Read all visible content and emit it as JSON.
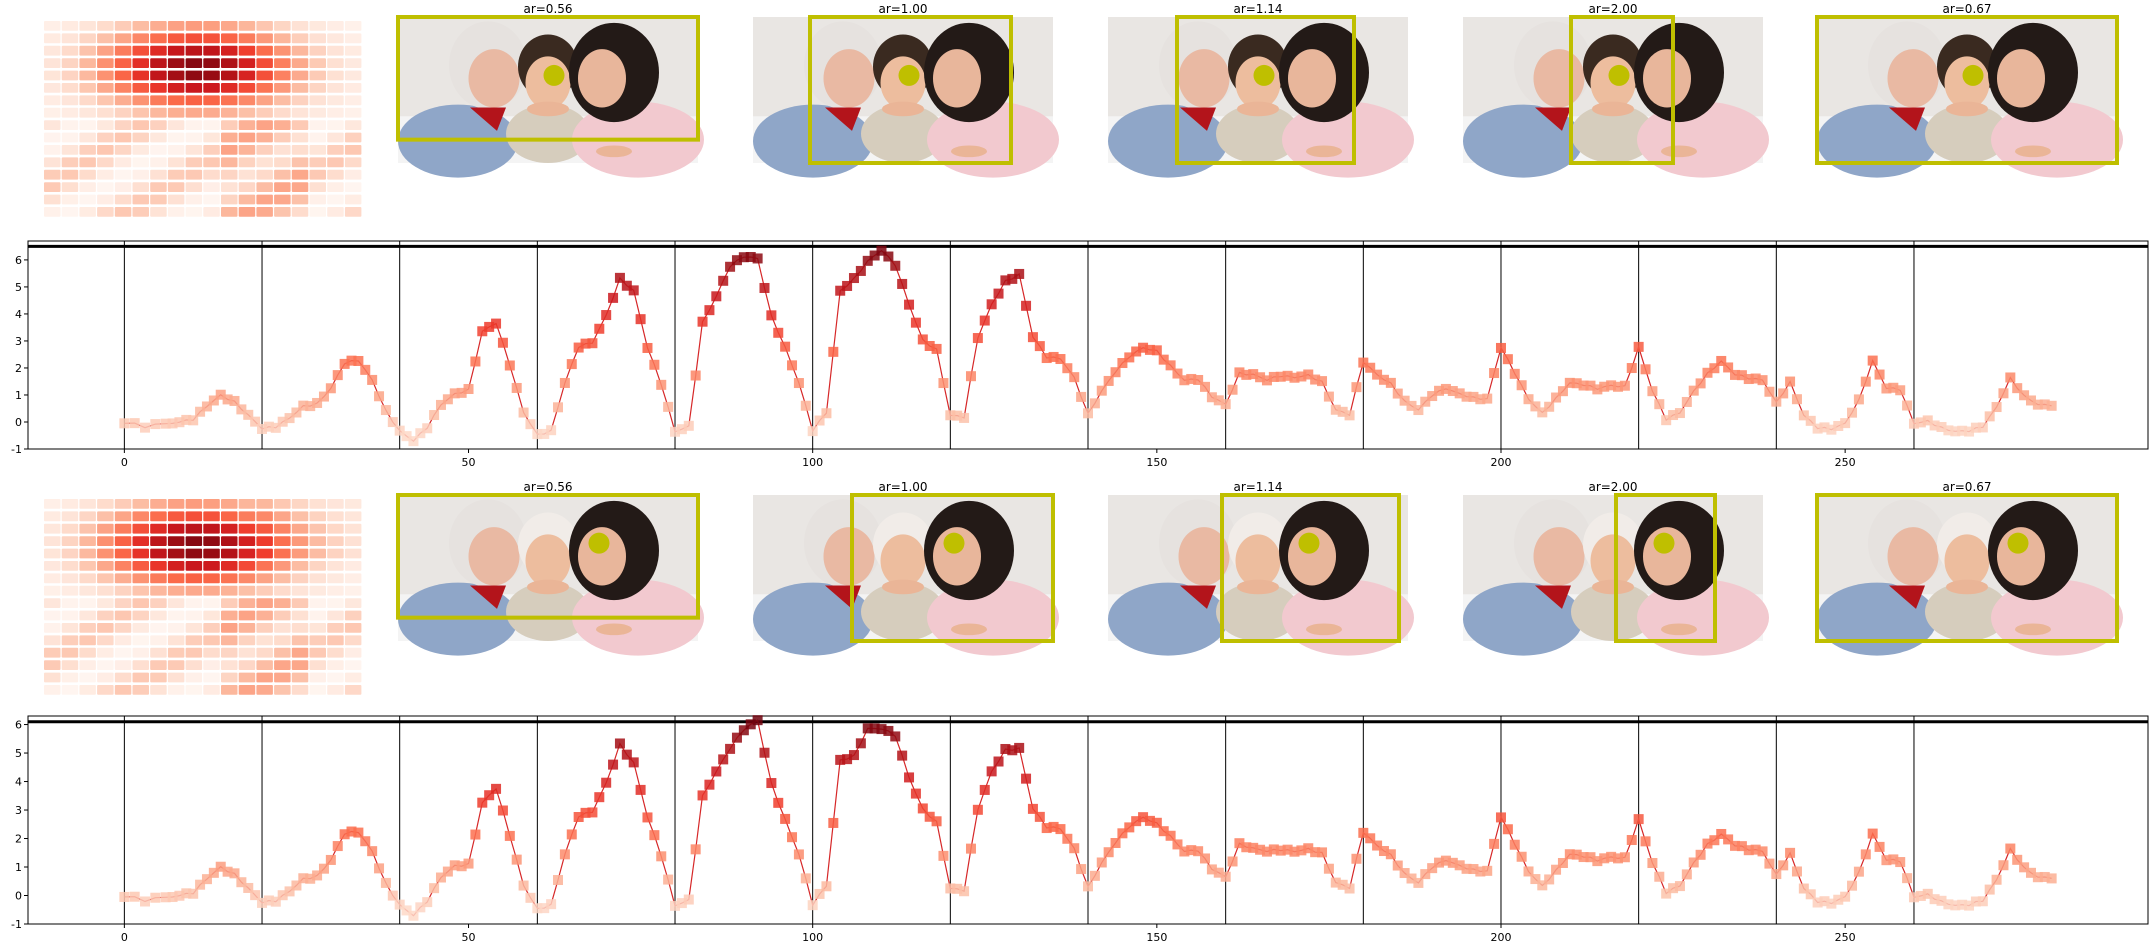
{
  "colors": {
    "curve": "#d62728",
    "box": "#bfbf00",
    "dot": "#bfbf00",
    "frame": "#000000",
    "divider": "#000000",
    "heat_low": "#fff5f0",
    "heat_high": "#67000d",
    "photo_bg": "#e9e6e3",
    "shirt_left": "#8fa6c8",
    "shirt_right": "#f2c9cf"
  },
  "icons": {
    "photo": "photo-icon",
    "marker": "filled-circle-icon"
  },
  "panels": [
    {
      "id": "top",
      "thumbnails": [
        {
          "label": "ar=0.56",
          "box": [
            0.0,
            0.0,
            1.0,
            0.84
          ],
          "dot": [
            0.52,
            0.4
          ]
        },
        {
          "label": "ar=1.00",
          "box": [
            0.19,
            0.0,
            0.86,
            1.0
          ],
          "dot": [
            0.52,
            0.4
          ]
        },
        {
          "label": "ar=1.14",
          "box": [
            0.23,
            0.0,
            0.82,
            1.0
          ],
          "dot": [
            0.52,
            0.4
          ]
        },
        {
          "label": "ar=2.00",
          "box": [
            0.36,
            0.0,
            0.7,
            1.0
          ],
          "dot": [
            0.52,
            0.4
          ]
        },
        {
          "label": "ar=0.67",
          "box": [
            0.0,
            0.0,
            1.0,
            1.0
          ],
          "dot": [
            0.52,
            0.4
          ]
        }
      ]
    },
    {
      "id": "bottom",
      "thumbnails": [
        {
          "label": "ar=0.56",
          "box": [
            0.0,
            0.0,
            1.0,
            0.84
          ],
          "dot": [
            0.67,
            0.33
          ]
        },
        {
          "label": "ar=1.00",
          "box": [
            0.33,
            0.0,
            1.0,
            1.0
          ],
          "dot": [
            0.67,
            0.33
          ]
        },
        {
          "label": "ar=1.14",
          "box": [
            0.38,
            0.0,
            0.97,
            1.0
          ],
          "dot": [
            0.67,
            0.33
          ]
        },
        {
          "label": "ar=2.00",
          "box": [
            0.51,
            0.0,
            0.84,
            1.0
          ],
          "dot": [
            0.67,
            0.33
          ]
        },
        {
          "label": "ar=0.67",
          "box": [
            0.0,
            0.0,
            1.0,
            1.0
          ],
          "dot": [
            0.67,
            0.33
          ]
        }
      ]
    }
  ],
  "chart_data": [
    {
      "type": "line",
      "xlim": [
        -14,
        294
      ],
      "ylim": [
        -1,
        6.7
      ],
      "xticks": [
        0,
        50,
        100,
        150,
        200,
        250
      ],
      "yticks": [
        -1,
        0,
        1,
        2,
        3,
        4,
        5,
        6
      ],
      "hline": 6.5,
      "segment_boundaries": [
        20,
        40,
        60,
        80,
        100,
        120,
        140,
        160,
        180,
        200,
        220,
        240,
        260
      ],
      "peaks": [
        [
          0,
          -0.05
        ],
        [
          3,
          -0.15
        ],
        [
          6,
          -0.05
        ],
        [
          8,
          0.05
        ],
        [
          10,
          0.1
        ],
        [
          12,
          0.55
        ],
        [
          14,
          0.95
        ],
        [
          16,
          0.75
        ],
        [
          18,
          0.3
        ],
        [
          20,
          -0.2
        ],
        [
          22,
          -0.2
        ],
        [
          24,
          0.1
        ],
        [
          26,
          0.55
        ],
        [
          28,
          0.7
        ],
        [
          30,
          1.3
        ],
        [
          32,
          2.2
        ],
        [
          34,
          2.25
        ],
        [
          36,
          1.5
        ],
        [
          38,
          0.4
        ],
        [
          40,
          -0.3
        ],
        [
          42,
          -0.65
        ],
        [
          44,
          -0.2
        ],
        [
          46,
          0.6
        ],
        [
          48,
          1.0
        ],
        [
          50,
          1.2
        ],
        [
          52,
          3.4
        ],
        [
          54,
          3.7
        ],
        [
          56,
          2.1
        ],
        [
          58,
          0.3
        ],
        [
          60,
          -0.5
        ],
        [
          62,
          -0.3
        ],
        [
          64,
          1.5
        ],
        [
          66,
          2.8
        ],
        [
          68,
          2.9
        ],
        [
          70,
          3.9
        ],
        [
          72,
          5.3
        ],
        [
          74,
          4.9
        ],
        [
          76,
          2.8
        ],
        [
          78,
          1.4
        ],
        [
          80,
          -0.4
        ],
        [
          82,
          -0.2
        ],
        [
          84,
          3.7
        ],
        [
          86,
          4.7
        ],
        [
          88,
          5.8
        ],
        [
          90,
          6.1
        ],
        [
          92,
          6.0
        ],
        [
          94,
          3.9
        ],
        [
          96,
          2.8
        ],
        [
          98,
          1.5
        ],
        [
          100,
          -0.3
        ],
        [
          102,
          0.3
        ],
        [
          104,
          4.8
        ],
        [
          106,
          5.3
        ],
        [
          108,
          6.0
        ],
        [
          110,
          6.4
        ],
        [
          112,
          5.8
        ],
        [
          114,
          4.3
        ],
        [
          116,
          3.0
        ],
        [
          118,
          2.7
        ],
        [
          120,
          0.3
        ],
        [
          122,
          0.2
        ],
        [
          124,
          3.1
        ],
        [
          126,
          4.3
        ],
        [
          128,
          5.2
        ],
        [
          130,
          5.5
        ],
        [
          132,
          3.2
        ],
        [
          134,
          2.4
        ],
        [
          136,
          2.3
        ],
        [
          138,
          1.6
        ],
        [
          140,
          0.3
        ],
        [
          142,
          1.2
        ],
        [
          144,
          1.9
        ],
        [
          146,
          2.4
        ],
        [
          148,
          2.7
        ],
        [
          150,
          2.6
        ],
        [
          152,
          2.1
        ],
        [
          154,
          1.6
        ],
        [
          156,
          1.6
        ],
        [
          158,
          0.9
        ],
        [
          160,
          0.6
        ],
        [
          162,
          1.8
        ],
        [
          164,
          1.8
        ],
        [
          166,
          1.6
        ],
        [
          168,
          1.7
        ],
        [
          170,
          1.6
        ],
        [
          172,
          1.7
        ],
        [
          174,
          1.5
        ],
        [
          176,
          0.5
        ],
        [
          178,
          0.3
        ],
        [
          180,
          2.2
        ],
        [
          182,
          1.7
        ],
        [
          184,
          1.4
        ],
        [
          186,
          0.8
        ],
        [
          188,
          0.5
        ],
        [
          190,
          1.0
        ],
        [
          192,
          1.2
        ],
        [
          194,
          1.0
        ],
        [
          196,
          0.9
        ],
        [
          198,
          0.9
        ],
        [
          200,
          2.8
        ],
        [
          202,
          1.8
        ],
        [
          204,
          0.8
        ],
        [
          206,
          0.3
        ],
        [
          208,
          0.9
        ],
        [
          210,
          1.5
        ],
        [
          212,
          1.4
        ],
        [
          214,
          1.2
        ],
        [
          216,
          1.3
        ],
        [
          218,
          1.3
        ],
        [
          220,
          2.8
        ],
        [
          222,
          1.2
        ],
        [
          224,
          0.1
        ],
        [
          226,
          0.3
        ],
        [
          228,
          1.1
        ],
        [
          230,
          1.8
        ],
        [
          232,
          2.3
        ],
        [
          234,
          1.8
        ],
        [
          236,
          1.6
        ],
        [
          238,
          1.5
        ],
        [
          240,
          0.7
        ],
        [
          242,
          1.5
        ],
        [
          244,
          0.3
        ],
        [
          246,
          -0.2
        ],
        [
          248,
          -0.3
        ],
        [
          250,
          -0.1
        ],
        [
          252,
          0.8
        ],
        [
          254,
          2.3
        ],
        [
          256,
          1.3
        ],
        [
          258,
          1.2
        ],
        [
          260,
          -0.1
        ],
        [
          262,
          0.0
        ],
        [
          264,
          -0.2
        ],
        [
          266,
          -0.3
        ],
        [
          268,
          -0.3
        ],
        [
          270,
          -0.2
        ],
        [
          272,
          0.5
        ],
        [
          274,
          1.6
        ],
        [
          276,
          1.0
        ],
        [
          278,
          0.7
        ],
        [
          280,
          0.6
        ]
      ]
    },
    {
      "type": "line",
      "xlim": [
        -14,
        294
      ],
      "ylim": [
        -1,
        6.3
      ],
      "xticks": [
        0,
        50,
        100,
        150,
        200,
        250
      ],
      "yticks": [
        -1,
        0,
        1,
        2,
        3,
        4,
        5,
        6
      ],
      "hline": 6.1,
      "segment_boundaries": [
        20,
        40,
        60,
        80,
        100,
        120,
        140,
        160,
        180,
        200,
        220,
        240,
        260
      ],
      "peaks": [
        [
          0,
          -0.05
        ],
        [
          3,
          -0.15
        ],
        [
          6,
          -0.05
        ],
        [
          8,
          0.05
        ],
        [
          10,
          0.1
        ],
        [
          12,
          0.55
        ],
        [
          14,
          0.95
        ],
        [
          16,
          0.75
        ],
        [
          18,
          0.3
        ],
        [
          20,
          -0.2
        ],
        [
          22,
          -0.2
        ],
        [
          24,
          0.1
        ],
        [
          26,
          0.55
        ],
        [
          28,
          0.7
        ],
        [
          30,
          1.3
        ],
        [
          32,
          2.2
        ],
        [
          34,
          2.2
        ],
        [
          36,
          1.5
        ],
        [
          38,
          0.4
        ],
        [
          40,
          -0.3
        ],
        [
          42,
          -0.65
        ],
        [
          44,
          -0.2
        ],
        [
          46,
          0.6
        ],
        [
          48,
          1.0
        ],
        [
          50,
          1.1
        ],
        [
          52,
          3.3
        ],
        [
          54,
          3.8
        ],
        [
          56,
          2.1
        ],
        [
          58,
          0.3
        ],
        [
          60,
          -0.5
        ],
        [
          62,
          -0.3
        ],
        [
          64,
          1.5
        ],
        [
          66,
          2.8
        ],
        [
          68,
          2.9
        ],
        [
          70,
          3.9
        ],
        [
          72,
          5.3
        ],
        [
          74,
          4.7
        ],
        [
          76,
          2.8
        ],
        [
          78,
          1.4
        ],
        [
          80,
          -0.4
        ],
        [
          82,
          -0.2
        ],
        [
          84,
          3.5
        ],
        [
          86,
          4.4
        ],
        [
          88,
          5.2
        ],
        [
          90,
          5.8
        ],
        [
          92,
          6.1
        ],
        [
          94,
          3.9
        ],
        [
          96,
          2.7
        ],
        [
          98,
          1.5
        ],
        [
          100,
          -0.3
        ],
        [
          102,
          0.3
        ],
        [
          104,
          4.7
        ],
        [
          106,
          4.9
        ],
        [
          108,
          5.9
        ],
        [
          110,
          5.9
        ],
        [
          112,
          5.6
        ],
        [
          114,
          4.1
        ],
        [
          116,
          3.0
        ],
        [
          118,
          2.6
        ],
        [
          120,
          0.3
        ],
        [
          122,
          0.2
        ],
        [
          124,
          3.0
        ],
        [
          126,
          4.3
        ],
        [
          128,
          5.1
        ],
        [
          130,
          5.2
        ],
        [
          132,
          3.1
        ],
        [
          134,
          2.4
        ],
        [
          136,
          2.3
        ],
        [
          138,
          1.6
        ],
        [
          140,
          0.3
        ],
        [
          142,
          1.2
        ],
        [
          144,
          1.9
        ],
        [
          146,
          2.4
        ],
        [
          148,
          2.7
        ],
        [
          150,
          2.5
        ],
        [
          152,
          2.1
        ],
        [
          154,
          1.6
        ],
        [
          156,
          1.6
        ],
        [
          158,
          0.9
        ],
        [
          160,
          0.6
        ],
        [
          162,
          1.8
        ],
        [
          164,
          1.7
        ],
        [
          166,
          1.6
        ],
        [
          168,
          1.6
        ],
        [
          170,
          1.5
        ],
        [
          172,
          1.6
        ],
        [
          174,
          1.5
        ],
        [
          176,
          0.5
        ],
        [
          178,
          0.3
        ],
        [
          180,
          2.2
        ],
        [
          182,
          1.7
        ],
        [
          184,
          1.4
        ],
        [
          186,
          0.8
        ],
        [
          188,
          0.5
        ],
        [
          190,
          1.0
        ],
        [
          192,
          1.2
        ],
        [
          194,
          1.0
        ],
        [
          196,
          0.9
        ],
        [
          198,
          0.9
        ],
        [
          200,
          2.8
        ],
        [
          202,
          1.8
        ],
        [
          204,
          0.8
        ],
        [
          206,
          0.3
        ],
        [
          208,
          0.9
        ],
        [
          210,
          1.5
        ],
        [
          212,
          1.4
        ],
        [
          214,
          1.2
        ],
        [
          216,
          1.3
        ],
        [
          218,
          1.3
        ],
        [
          220,
          2.7
        ],
        [
          222,
          1.2
        ],
        [
          224,
          0.1
        ],
        [
          226,
          0.3
        ],
        [
          228,
          1.1
        ],
        [
          230,
          1.8
        ],
        [
          232,
          2.2
        ],
        [
          234,
          1.8
        ],
        [
          236,
          1.6
        ],
        [
          238,
          1.5
        ],
        [
          240,
          0.7
        ],
        [
          242,
          1.5
        ],
        [
          244,
          0.3
        ],
        [
          246,
          -0.2
        ],
        [
          248,
          -0.3
        ],
        [
          250,
          -0.1
        ],
        [
          252,
          0.8
        ],
        [
          254,
          2.2
        ],
        [
          256,
          1.3
        ],
        [
          258,
          1.2
        ],
        [
          260,
          -0.1
        ],
        [
          262,
          0.0
        ],
        [
          264,
          -0.2
        ],
        [
          266,
          -0.3
        ],
        [
          268,
          -0.3
        ],
        [
          270,
          -0.2
        ],
        [
          272,
          0.5
        ],
        [
          274,
          1.6
        ],
        [
          276,
          1.0
        ],
        [
          278,
          0.7
        ],
        [
          280,
          0.6
        ]
      ]
    }
  ]
}
